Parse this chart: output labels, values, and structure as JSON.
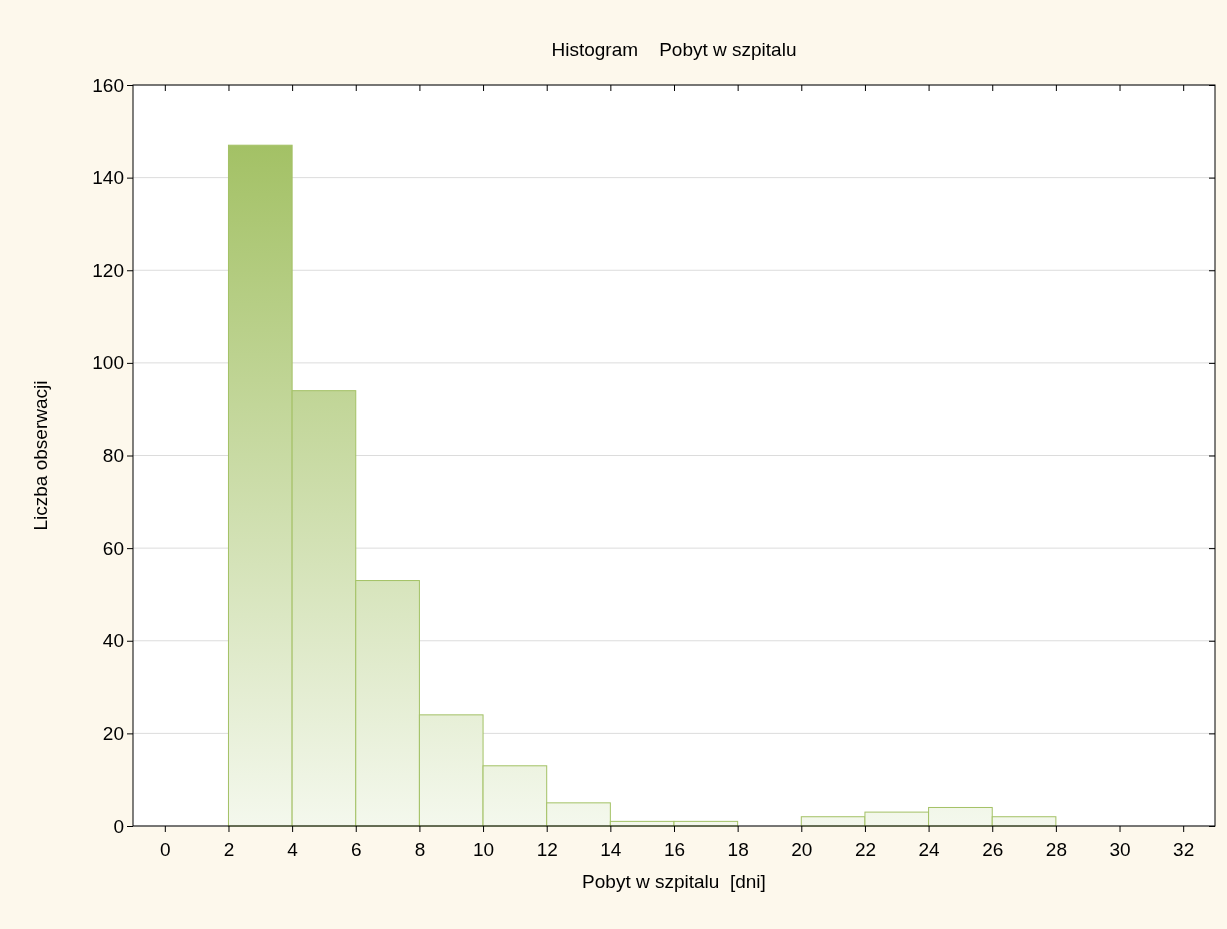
{
  "chart_data": {
    "type": "histogram",
    "title": "Histogram    Pobyt w szpitalu",
    "xlabel": "Pobyt w szpitalu  [dni]",
    "ylabel": "Liczba obserwacji",
    "bins": [
      0,
      2,
      4,
      6,
      8,
      10,
      12,
      14,
      16,
      18,
      20,
      22,
      24,
      26,
      28
    ],
    "values": [
      0,
      147,
      94,
      53,
      24,
      13,
      5,
      1,
      1,
      0,
      2,
      3,
      4,
      2
    ],
    "color": "#a3c165",
    "xlim": [
      -1,
      33
    ],
    "xticks": [
      0,
      2,
      4,
      6,
      8,
      10,
      12,
      14,
      16,
      18,
      20,
      22,
      24,
      26,
      28,
      30,
      32
    ],
    "ylim": [
      0,
      160
    ],
    "yticks": [
      0,
      20,
      40,
      60,
      80,
      100,
      120,
      140,
      160
    ],
    "grid": "y"
  }
}
